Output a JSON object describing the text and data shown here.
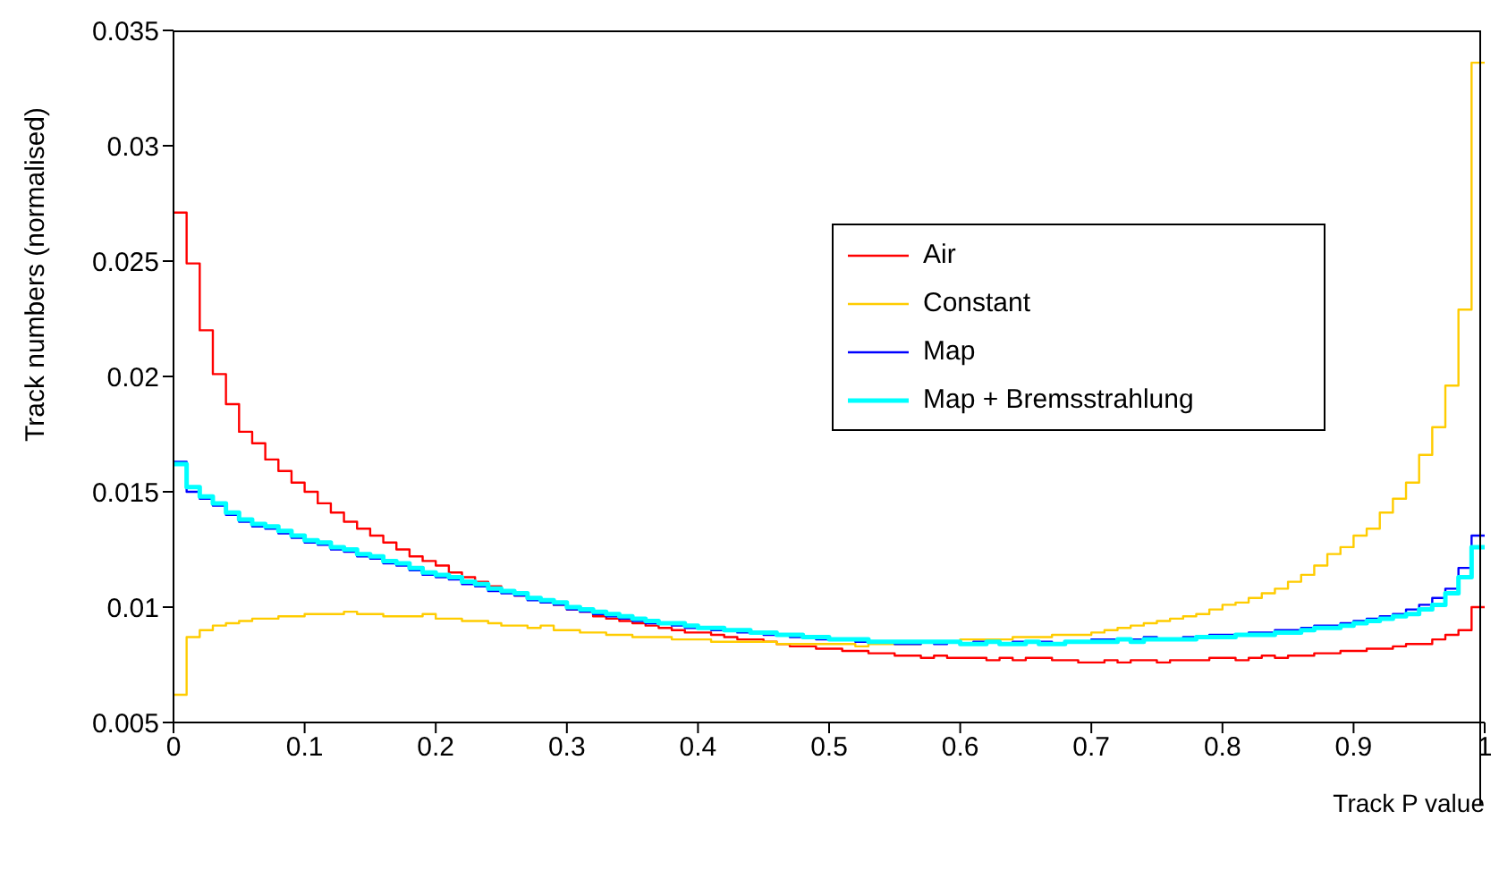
{
  "chart_data": {
    "type": "histogram",
    "xlabel": "Track P value",
    "ylabel": "Track numbers (normalised)",
    "bins": [
      0,
      0.01,
      0.02,
      0.03,
      0.04,
      0.05,
      0.06,
      0.07,
      0.08,
      0.09,
      0.1,
      0.11,
      0.12,
      0.13,
      0.14,
      0.15,
      0.16,
      0.17,
      0.18,
      0.19,
      0.2,
      0.21,
      0.22,
      0.23,
      0.24,
      0.25,
      0.26,
      0.27,
      0.28,
      0.29,
      0.3,
      0.31,
      0.32,
      0.33,
      0.34,
      0.35,
      0.36,
      0.37,
      0.38,
      0.39,
      0.4,
      0.41,
      0.42,
      0.43,
      0.44,
      0.45,
      0.46,
      0.47,
      0.48,
      0.49,
      0.5,
      0.51,
      0.52,
      0.53,
      0.54,
      0.55,
      0.56,
      0.57,
      0.58,
      0.59,
      0.6,
      0.61,
      0.62,
      0.63,
      0.64,
      0.65,
      0.66,
      0.67,
      0.68,
      0.69,
      0.7,
      0.71,
      0.72,
      0.73,
      0.74,
      0.75,
      0.76,
      0.77,
      0.78,
      0.79,
      0.8,
      0.81,
      0.82,
      0.83,
      0.84,
      0.85,
      0.86,
      0.87,
      0.88,
      0.89,
      0.9,
      0.91,
      0.92,
      0.93,
      0.94,
      0.95,
      0.96,
      0.97,
      0.98,
      0.99,
      1
    ],
    "series": [
      {
        "name": "Air",
        "color": "#ff0000",
        "values": [
          0.0271,
          0.0249,
          0.022,
          0.0201,
          0.0188,
          0.0176,
          0.0171,
          0.0164,
          0.0159,
          0.0154,
          0.015,
          0.0145,
          0.0141,
          0.0137,
          0.0134,
          0.0131,
          0.0128,
          0.0125,
          0.0122,
          0.012,
          0.0118,
          0.0115,
          0.0113,
          0.0111,
          0.0109,
          0.0107,
          0.0105,
          0.0104,
          0.0102,
          0.0101,
          0.0099,
          0.0098,
          0.0096,
          0.0095,
          0.0094,
          0.0093,
          0.0092,
          0.0091,
          0.009,
          0.0089,
          0.0089,
          0.0088,
          0.0087,
          0.0086,
          0.0086,
          0.0085,
          0.0084,
          0.0083,
          0.0083,
          0.0082,
          0.0082,
          0.0081,
          0.0081,
          0.008,
          0.008,
          0.0079,
          0.0079,
          0.0078,
          0.0079,
          0.0078,
          0.0078,
          0.0078,
          0.0077,
          0.0078,
          0.0077,
          0.0078,
          0.0078,
          0.0077,
          0.0077,
          0.0076,
          0.0076,
          0.0077,
          0.0076,
          0.0077,
          0.0077,
          0.0076,
          0.0077,
          0.0077,
          0.0077,
          0.0078,
          0.0078,
          0.0077,
          0.0078,
          0.0079,
          0.0078,
          0.0079,
          0.0079,
          0.008,
          0.008,
          0.0081,
          0.0081,
          0.0082,
          0.0082,
          0.0083,
          0.0084,
          0.0084,
          0.0086,
          0.0088,
          0.009,
          0.01
        ]
      },
      {
        "name": "Constant",
        "color": "#ffcc00",
        "values": [
          0.0062,
          0.0087,
          0.009,
          0.0092,
          0.0093,
          0.0094,
          0.0095,
          0.0095,
          0.0096,
          0.0096,
          0.0097,
          0.0097,
          0.0097,
          0.0098,
          0.0097,
          0.0097,
          0.0096,
          0.0096,
          0.0096,
          0.0097,
          0.0095,
          0.0095,
          0.0094,
          0.0094,
          0.0093,
          0.0092,
          0.0092,
          0.0091,
          0.0092,
          0.009,
          0.009,
          0.0089,
          0.0089,
          0.0088,
          0.0088,
          0.0087,
          0.0087,
          0.0087,
          0.0086,
          0.0086,
          0.0086,
          0.0085,
          0.0085,
          0.0085,
          0.0085,
          0.0085,
          0.0084,
          0.0084,
          0.0084,
          0.0084,
          0.0084,
          0.0084,
          0.0083,
          0.0084,
          0.0084,
          0.0084,
          0.0084,
          0.0085,
          0.0085,
          0.0085,
          0.0086,
          0.0086,
          0.0086,
          0.0086,
          0.0087,
          0.0087,
          0.0087,
          0.0088,
          0.0088,
          0.0088,
          0.0089,
          0.009,
          0.0091,
          0.0092,
          0.0093,
          0.0094,
          0.0095,
          0.0096,
          0.0097,
          0.0099,
          0.0101,
          0.0102,
          0.0104,
          0.0106,
          0.0108,
          0.0111,
          0.0114,
          0.0118,
          0.0123,
          0.0126,
          0.0131,
          0.0134,
          0.0141,
          0.0147,
          0.0154,
          0.0166,
          0.0178,
          0.0196,
          0.0229,
          0.0336
        ]
      },
      {
        "name": "Map",
        "color": "#0000ff",
        "values": [
          0.0163,
          0.015,
          0.0147,
          0.0144,
          0.014,
          0.0137,
          0.0135,
          0.0134,
          0.0132,
          0.013,
          0.0128,
          0.0127,
          0.0125,
          0.0124,
          0.0122,
          0.0121,
          0.0119,
          0.0118,
          0.0116,
          0.0114,
          0.0113,
          0.0112,
          0.011,
          0.0109,
          0.0107,
          0.0106,
          0.0105,
          0.0103,
          0.0102,
          0.0101,
          0.0099,
          0.0098,
          0.0097,
          0.0096,
          0.0095,
          0.0094,
          0.0093,
          0.0093,
          0.0092,
          0.0091,
          0.0091,
          0.009,
          0.009,
          0.0089,
          0.0089,
          0.0088,
          0.0088,
          0.0087,
          0.0087,
          0.0086,
          0.0086,
          0.0086,
          0.0085,
          0.0085,
          0.0085,
          0.0084,
          0.0084,
          0.0085,
          0.0084,
          0.0085,
          0.0084,
          0.0085,
          0.0085,
          0.0084,
          0.0085,
          0.0085,
          0.0085,
          0.0084,
          0.0085,
          0.0085,
          0.0086,
          0.0086,
          0.0086,
          0.0086,
          0.0087,
          0.0086,
          0.0086,
          0.0087,
          0.0087,
          0.0088,
          0.0088,
          0.0088,
          0.0089,
          0.0089,
          0.009,
          0.009,
          0.0091,
          0.0092,
          0.0092,
          0.0093,
          0.0094,
          0.0095,
          0.0096,
          0.0097,
          0.0099,
          0.0101,
          0.0104,
          0.0108,
          0.0117,
          0.0131
        ]
      },
      {
        "name": "Map + Bremsstrahlung",
        "color": "#00ffff",
        "values": [
          0.0162,
          0.0152,
          0.0148,
          0.0145,
          0.0141,
          0.0138,
          0.0136,
          0.0135,
          0.0133,
          0.0131,
          0.0129,
          0.0128,
          0.0126,
          0.0125,
          0.0123,
          0.0122,
          0.012,
          0.0119,
          0.0117,
          0.0115,
          0.0114,
          0.0113,
          0.0111,
          0.011,
          0.0108,
          0.0107,
          0.0106,
          0.0104,
          0.0103,
          0.0102,
          0.01,
          0.0099,
          0.0098,
          0.0097,
          0.0096,
          0.0095,
          0.0094,
          0.0093,
          0.0093,
          0.0092,
          0.0091,
          0.0091,
          0.009,
          0.009,
          0.0089,
          0.0089,
          0.0088,
          0.0088,
          0.0087,
          0.0087,
          0.0086,
          0.0086,
          0.0086,
          0.0085,
          0.0085,
          0.0085,
          0.0085,
          0.0085,
          0.0085,
          0.0085,
          0.0084,
          0.0084,
          0.0085,
          0.0084,
          0.0084,
          0.0085,
          0.0084,
          0.0084,
          0.0085,
          0.0085,
          0.0085,
          0.0085,
          0.0086,
          0.0085,
          0.0086,
          0.0086,
          0.0086,
          0.0086,
          0.0087,
          0.0087,
          0.0087,
          0.0088,
          0.0088,
          0.0088,
          0.0089,
          0.0089,
          0.009,
          0.0091,
          0.0091,
          0.0092,
          0.0093,
          0.0094,
          0.0095,
          0.0096,
          0.0097,
          0.0099,
          0.0101,
          0.0106,
          0.0113,
          0.0126
        ]
      }
    ],
    "xlim": [
      0,
      1
    ],
    "xticks": [
      0,
      0.1,
      0.2,
      0.3,
      0.4,
      0.5,
      0.6,
      0.7,
      0.8,
      0.9,
      1
    ],
    "ylim": [
      0.005,
      0.035
    ],
    "yticks": [
      0.005,
      0.01,
      0.015,
      0.02,
      0.025,
      0.03,
      0.035
    ],
    "grid": false,
    "legend": "top right"
  }
}
